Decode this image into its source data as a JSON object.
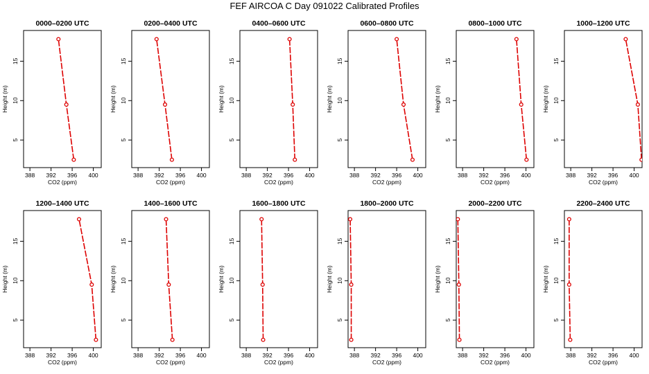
{
  "title": "FEF AIRCOA C  Day 091022  Calibrated Profiles",
  "colors": {
    "series": "#dd0000",
    "axis": "#000000",
    "background": "#ffffff"
  },
  "chart_data": [
    {
      "type": "line",
      "title": "0000–0200 UTC",
      "xlabel": "CO2 (ppm)",
      "ylabel": "Height (m)",
      "xlim": [
        386.8,
        401.5
      ],
      "ylim": [
        1.5,
        18.9
      ],
      "xticks": [
        388,
        392,
        396,
        400
      ],
      "yticks": [
        5,
        10,
        15
      ],
      "points": [
        {
          "x": 396.3,
          "y": 2.5
        },
        {
          "x": 394.9,
          "y": 9.5
        },
        {
          "x": 393.4,
          "y": 17.8
        }
      ]
    },
    {
      "type": "line",
      "title": "0200–0400 UTC",
      "xlabel": "CO2 (ppm)",
      "ylabel": "Height (m)",
      "xlim": [
        386.8,
        401.5
      ],
      "ylim": [
        1.5,
        18.9
      ],
      "xticks": [
        388,
        392,
        396,
        400
      ],
      "yticks": [
        5,
        10,
        15
      ],
      "points": [
        {
          "x": 394.4,
          "y": 2.5
        },
        {
          "x": 393.1,
          "y": 9.5
        },
        {
          "x": 391.5,
          "y": 17.8
        }
      ]
    },
    {
      "type": "line",
      "title": "0400–0600 UTC",
      "xlabel": "CO2 (ppm)",
      "ylabel": "Height (m)",
      "xlim": [
        386.8,
        401.5
      ],
      "ylim": [
        1.5,
        18.9
      ],
      "xticks": [
        388,
        392,
        396,
        400
      ],
      "yticks": [
        5,
        10,
        15
      ],
      "points": [
        {
          "x": 397.2,
          "y": 2.5
        },
        {
          "x": 396.8,
          "y": 9.5
        },
        {
          "x": 396.2,
          "y": 17.8
        }
      ]
    },
    {
      "type": "line",
      "title": "0600–0800 UTC",
      "xlabel": "CO2 (ppm)",
      "ylabel": "Height (m)",
      "xlim": [
        386.8,
        401.5
      ],
      "ylim": [
        1.5,
        18.9
      ],
      "xticks": [
        388,
        392,
        396,
        400
      ],
      "yticks": [
        5,
        10,
        15
      ],
      "points": [
        {
          "x": 399.0,
          "y": 2.5
        },
        {
          "x": 397.3,
          "y": 9.5
        },
        {
          "x": 396.0,
          "y": 17.8
        }
      ]
    },
    {
      "type": "line",
      "title": "0800–1000 UTC",
      "xlabel": "CO2 (ppm)",
      "ylabel": "Height (m)",
      "xlim": [
        386.8,
        401.5
      ],
      "ylim": [
        1.5,
        18.9
      ],
      "xticks": [
        388,
        392,
        396,
        400
      ],
      "yticks": [
        5,
        10,
        15
      ],
      "points": [
        {
          "x": 400.1,
          "y": 2.5
        },
        {
          "x": 399.1,
          "y": 9.5
        },
        {
          "x": 398.2,
          "y": 17.8
        }
      ]
    },
    {
      "type": "line",
      "title": "1000–1200 UTC",
      "xlabel": "CO2 (ppm)",
      "ylabel": "Height (m)",
      "xlim": [
        386.8,
        401.5
      ],
      "ylim": [
        1.5,
        18.9
      ],
      "xticks": [
        388,
        392,
        396,
        400
      ],
      "yticks": [
        5,
        10,
        15
      ],
      "points": [
        {
          "x": 401.4,
          "y": 2.5
        },
        {
          "x": 400.7,
          "y": 9.5
        },
        {
          "x": 398.4,
          "y": 17.8
        }
      ]
    },
    {
      "type": "line",
      "title": "1200–1400 UTC",
      "xlabel": "CO2 (ppm)",
      "ylabel": "Height (m)",
      "xlim": [
        386.8,
        401.5
      ],
      "ylim": [
        1.5,
        18.9
      ],
      "xticks": [
        388,
        392,
        396,
        400
      ],
      "yticks": [
        5,
        10,
        15
      ],
      "points": [
        {
          "x": 400.5,
          "y": 2.5
        },
        {
          "x": 399.7,
          "y": 9.5
        },
        {
          "x": 397.3,
          "y": 17.8
        }
      ]
    },
    {
      "type": "line",
      "title": "1400–1600 UTC",
      "xlabel": "CO2 (ppm)",
      "ylabel": "Height (m)",
      "xlim": [
        386.8,
        401.5
      ],
      "ylim": [
        1.5,
        18.9
      ],
      "xticks": [
        388,
        392,
        396,
        400
      ],
      "yticks": [
        5,
        10,
        15
      ],
      "points": [
        {
          "x": 394.5,
          "y": 2.5
        },
        {
          "x": 393.8,
          "y": 9.5
        },
        {
          "x": 393.3,
          "y": 17.8
        }
      ]
    },
    {
      "type": "line",
      "title": "1600–1800 UTC",
      "xlabel": "CO2 (ppm)",
      "ylabel": "Height (m)",
      "xlim": [
        386.8,
        401.5
      ],
      "ylim": [
        1.5,
        18.9
      ],
      "xticks": [
        388,
        392,
        396,
        400
      ],
      "yticks": [
        5,
        10,
        15
      ],
      "points": [
        {
          "x": 391.2,
          "y": 2.5
        },
        {
          "x": 391.1,
          "y": 9.5
        },
        {
          "x": 390.9,
          "y": 17.8
        }
      ]
    },
    {
      "type": "line",
      "title": "1800–2000 UTC",
      "xlabel": "CO2 (ppm)",
      "ylabel": "Height (m)",
      "xlim": [
        386.8,
        401.5
      ],
      "ylim": [
        1.5,
        18.9
      ],
      "xticks": [
        388,
        392,
        396,
        400
      ],
      "yticks": [
        5,
        10,
        15
      ],
      "points": [
        {
          "x": 387.4,
          "y": 2.5
        },
        {
          "x": 387.4,
          "y": 9.5
        },
        {
          "x": 387.2,
          "y": 17.8
        }
      ]
    },
    {
      "type": "line",
      "title": "2000–2200 UTC",
      "xlabel": "CO2 (ppm)",
      "ylabel": "Height (m)",
      "xlim": [
        386.8,
        401.5
      ],
      "ylim": [
        1.5,
        18.9
      ],
      "xticks": [
        388,
        392,
        396,
        400
      ],
      "yticks": [
        5,
        10,
        15
      ],
      "points": [
        {
          "x": 387.4,
          "y": 2.5
        },
        {
          "x": 387.3,
          "y": 9.5
        },
        {
          "x": 387.1,
          "y": 17.8
        }
      ]
    },
    {
      "type": "line",
      "title": "2200–2400 UTC",
      "xlabel": "CO2 (ppm)",
      "ylabel": "Height (m)",
      "xlim": [
        386.8,
        401.5
      ],
      "ylim": [
        1.5,
        18.9
      ],
      "xticks": [
        388,
        392,
        396,
        400
      ],
      "yticks": [
        5,
        10,
        15
      ],
      "points": [
        {
          "x": 387.9,
          "y": 2.5
        },
        {
          "x": 387.7,
          "y": 9.5
        },
        {
          "x": 387.7,
          "y": 17.8
        }
      ]
    }
  ]
}
